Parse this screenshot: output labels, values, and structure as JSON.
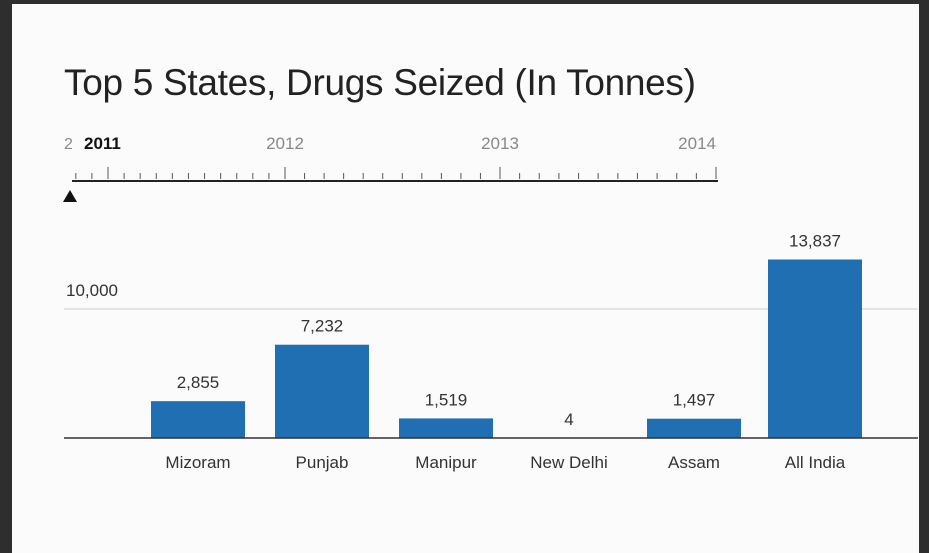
{
  "chart_data": {
    "type": "bar",
    "title": "Top 5 States, Drugs Seized (In Tonnes)",
    "xlabel": "",
    "ylabel": "",
    "categories": [
      "Mizoram",
      "Punjab",
      "Manipur",
      "New Delhi",
      "Assam",
      "All India"
    ],
    "values": [
      2855,
      7232,
      1519,
      4,
      1497,
      13837
    ],
    "value_labels": [
      "2,855",
      "7,232",
      "1,519",
      "4",
      "1,497",
      "13,837"
    ],
    "y_gridlines": [
      {
        "value": 10000,
        "label": "10,000"
      }
    ],
    "ylim": [
      0,
      16000
    ],
    "grid": true,
    "bar_color": "#1f6fb2"
  },
  "timeline": {
    "years": [
      "2011",
      "2012",
      "2013",
      "2014"
    ],
    "selected_year": "2011",
    "truncated_prefix": "2",
    "marker": "▲"
  }
}
